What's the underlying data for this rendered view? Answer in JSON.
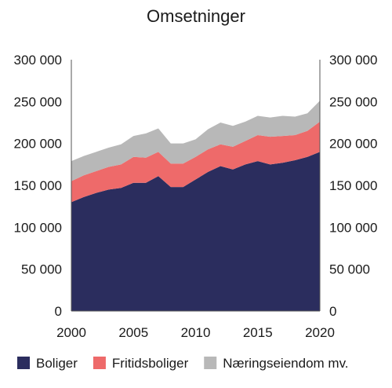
{
  "chart_data": {
    "type": "area",
    "stacked": true,
    "title": "Omsetninger",
    "xlabel": "",
    "ylabel": "",
    "x": [
      2000,
      2001,
      2002,
      2003,
      2004,
      2005,
      2006,
      2007,
      2008,
      2009,
      2010,
      2011,
      2012,
      2013,
      2014,
      2015,
      2016,
      2017,
      2018,
      2019,
      2020
    ],
    "xticks": [
      2000,
      2005,
      2010,
      2015,
      2020
    ],
    "xlim": [
      2000,
      2020
    ],
    "ylim": [
      0,
      300000
    ],
    "yticks": [
      0,
      50000,
      100000,
      150000,
      200000,
      250000,
      300000
    ],
    "ytick_labels": [
      "0",
      "50 000",
      "100 000",
      "150 000",
      "200 000",
      "250 000",
      "300 000"
    ],
    "dual_y_axis": true,
    "grid": false,
    "legend_position": "bottom",
    "series": [
      {
        "name": "Boliger",
        "color": "#2b2d5e",
        "values": [
          130000,
          136000,
          141000,
          145000,
          147000,
          153000,
          153000,
          161000,
          148000,
          148000,
          157000,
          166000,
          173000,
          169000,
          175000,
          179000,
          175000,
          177000,
          180000,
          184000,
          190000
        ]
      },
      {
        "name": "Fritidsboliger",
        "color": "#ee6a6a",
        "values": [
          25000,
          26000,
          26000,
          27000,
          28000,
          31000,
          30000,
          29000,
          28000,
          28000,
          27000,
          27000,
          26000,
          27000,
          28000,
          31000,
          33000,
          32000,
          30000,
          31000,
          36000
        ]
      },
      {
        "name": "Næringseiendom mv.",
        "color": "#b8b8b8",
        "values": [
          24000,
          23000,
          23000,
          23000,
          24000,
          25000,
          29000,
          28000,
          24000,
          24000,
          21000,
          24000,
          26000,
          25000,
          23000,
          23000,
          23000,
          24000,
          22000,
          21000,
          25000
        ]
      }
    ]
  }
}
